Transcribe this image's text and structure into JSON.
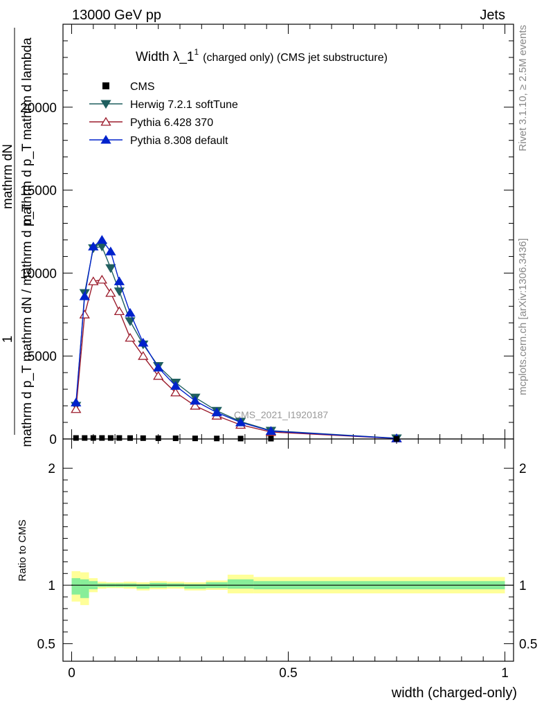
{
  "header": {
    "energy": "13000 GeV pp",
    "category": "Jets",
    "side_top": "Rivet 3.1.10, ≥ 2.5M events",
    "side_bottom": "mcplots.cern.ch [arXiv:1306.3436]"
  },
  "chart_data": [
    {
      "type": "line",
      "title_main": "Width λ_1",
      "title_sup": "1",
      "title_rest": "(charged only) (CMS jet substructure)",
      "watermark": "CMS_2021_I1920187",
      "ylabel_top": "1",
      "ylabel_lines": [
        "mathrm dN",
        "mathrm d p_T mathrm d lambda",
        "mathrm d p_T mathrm dN / mathrm d p_T"
      ],
      "xlim": [
        -0.02,
        1.02
      ],
      "ylim": [
        0,
        25000
      ],
      "yticks": [
        {
          "v": 0,
          "label": "0"
        },
        {
          "v": 5000,
          "label": "5000"
        },
        {
          "v": 10000,
          "label": "10000"
        },
        {
          "v": 15000,
          "label": "15000"
        },
        {
          "v": 20000,
          "label": "20000"
        }
      ],
      "legend_position": "top-left",
      "cms": {
        "name": "CMS",
        "color": "#000000",
        "x": [
          0.01,
          0.03,
          0.05,
          0.07,
          0.09,
          0.11,
          0.135,
          0.165,
          0.2,
          0.24,
          0.285,
          0.335,
          0.39,
          0.46,
          0.75
        ],
        "y": [
          60,
          60,
          60,
          60,
          60,
          60,
          55,
          50,
          45,
          40,
          35,
          30,
          25,
          20,
          10
        ]
      },
      "series": [
        {
          "name": "Herwig 7.2.1 softTune",
          "color": "#1f5f5f",
          "marker": "triangle-down",
          "x": [
            0.01,
            0.03,
            0.05,
            0.07,
            0.09,
            0.11,
            0.135,
            0.165,
            0.2,
            0.24,
            0.285,
            0.335,
            0.39,
            0.46,
            0.75
          ],
          "y": [
            2000,
            8800,
            11500,
            11600,
            10300,
            8900,
            7100,
            5700,
            4400,
            3400,
            2500,
            1700,
            1050,
            500,
            40
          ]
        },
        {
          "name": "Pythia 6.428 370",
          "color": "#9b1b2b",
          "marker": "triangle-up-open",
          "x": [
            0.01,
            0.03,
            0.05,
            0.07,
            0.09,
            0.11,
            0.135,
            0.165,
            0.2,
            0.24,
            0.285,
            0.335,
            0.39,
            0.46,
            0.75
          ],
          "y": [
            1800,
            7500,
            9500,
            9600,
            8800,
            7700,
            6100,
            5000,
            3800,
            2800,
            2000,
            1400,
            850,
            420,
            30
          ]
        },
        {
          "name": "Pythia 8.308 default",
          "color": "#0022cc",
          "marker": "triangle-up",
          "x": [
            0.01,
            0.03,
            0.05,
            0.07,
            0.09,
            0.11,
            0.135,
            0.165,
            0.2,
            0.24,
            0.285,
            0.335,
            0.39,
            0.46,
            0.75
          ],
          "y": [
            2200,
            8600,
            11600,
            12000,
            11300,
            9500,
            7600,
            5800,
            4300,
            3200,
            2300,
            1600,
            1000,
            480,
            35
          ]
        }
      ]
    },
    {
      "type": "area",
      "ylabel": "Ratio to CMS",
      "xlabel": "width (charged-only)",
      "xlim": [
        -0.02,
        1.02
      ],
      "ylim": [
        0.35,
        2.25
      ],
      "xticks": [
        {
          "v": 0,
          "label": "0"
        },
        {
          "v": 0.5,
          "label": "0.5"
        },
        {
          "v": 1,
          "label": "1"
        }
      ],
      "yticks": [
        {
          "v": 0.5,
          "label": "0.5"
        },
        {
          "v": 1,
          "label": "1"
        },
        {
          "v": 2,
          "label": "2"
        }
      ],
      "band_edges": [
        0.0,
        0.02,
        0.04,
        0.06,
        0.08,
        0.1,
        0.12,
        0.15,
        0.18,
        0.22,
        0.26,
        0.31,
        0.36,
        0.42,
        0.5,
        1.0
      ],
      "band_outer_colour": "#ffff99",
      "band_inner_colour": "#88ee99",
      "band_outer_halfwidth": [
        0.13,
        0.14,
        0.06,
        0.03,
        0.025,
        0.025,
        0.03,
        0.035,
        0.035,
        0.03,
        0.035,
        0.04,
        0.08,
        0.07,
        0.07
      ],
      "band_inner_halfwidth": [
        0.07,
        0.08,
        0.035,
        0.015,
        0.015,
        0.015,
        0.015,
        0.02,
        0.02,
        0.015,
        0.02,
        0.025,
        0.04,
        0.035,
        0.035
      ],
      "band_centre": [
        0.99,
        0.97,
        1.0,
        1.0,
        1.0,
        1.0,
        1.0,
        0.99,
        1.0,
        1.0,
        0.99,
        1.0,
        1.01,
        1.0,
        1.0
      ]
    }
  ]
}
